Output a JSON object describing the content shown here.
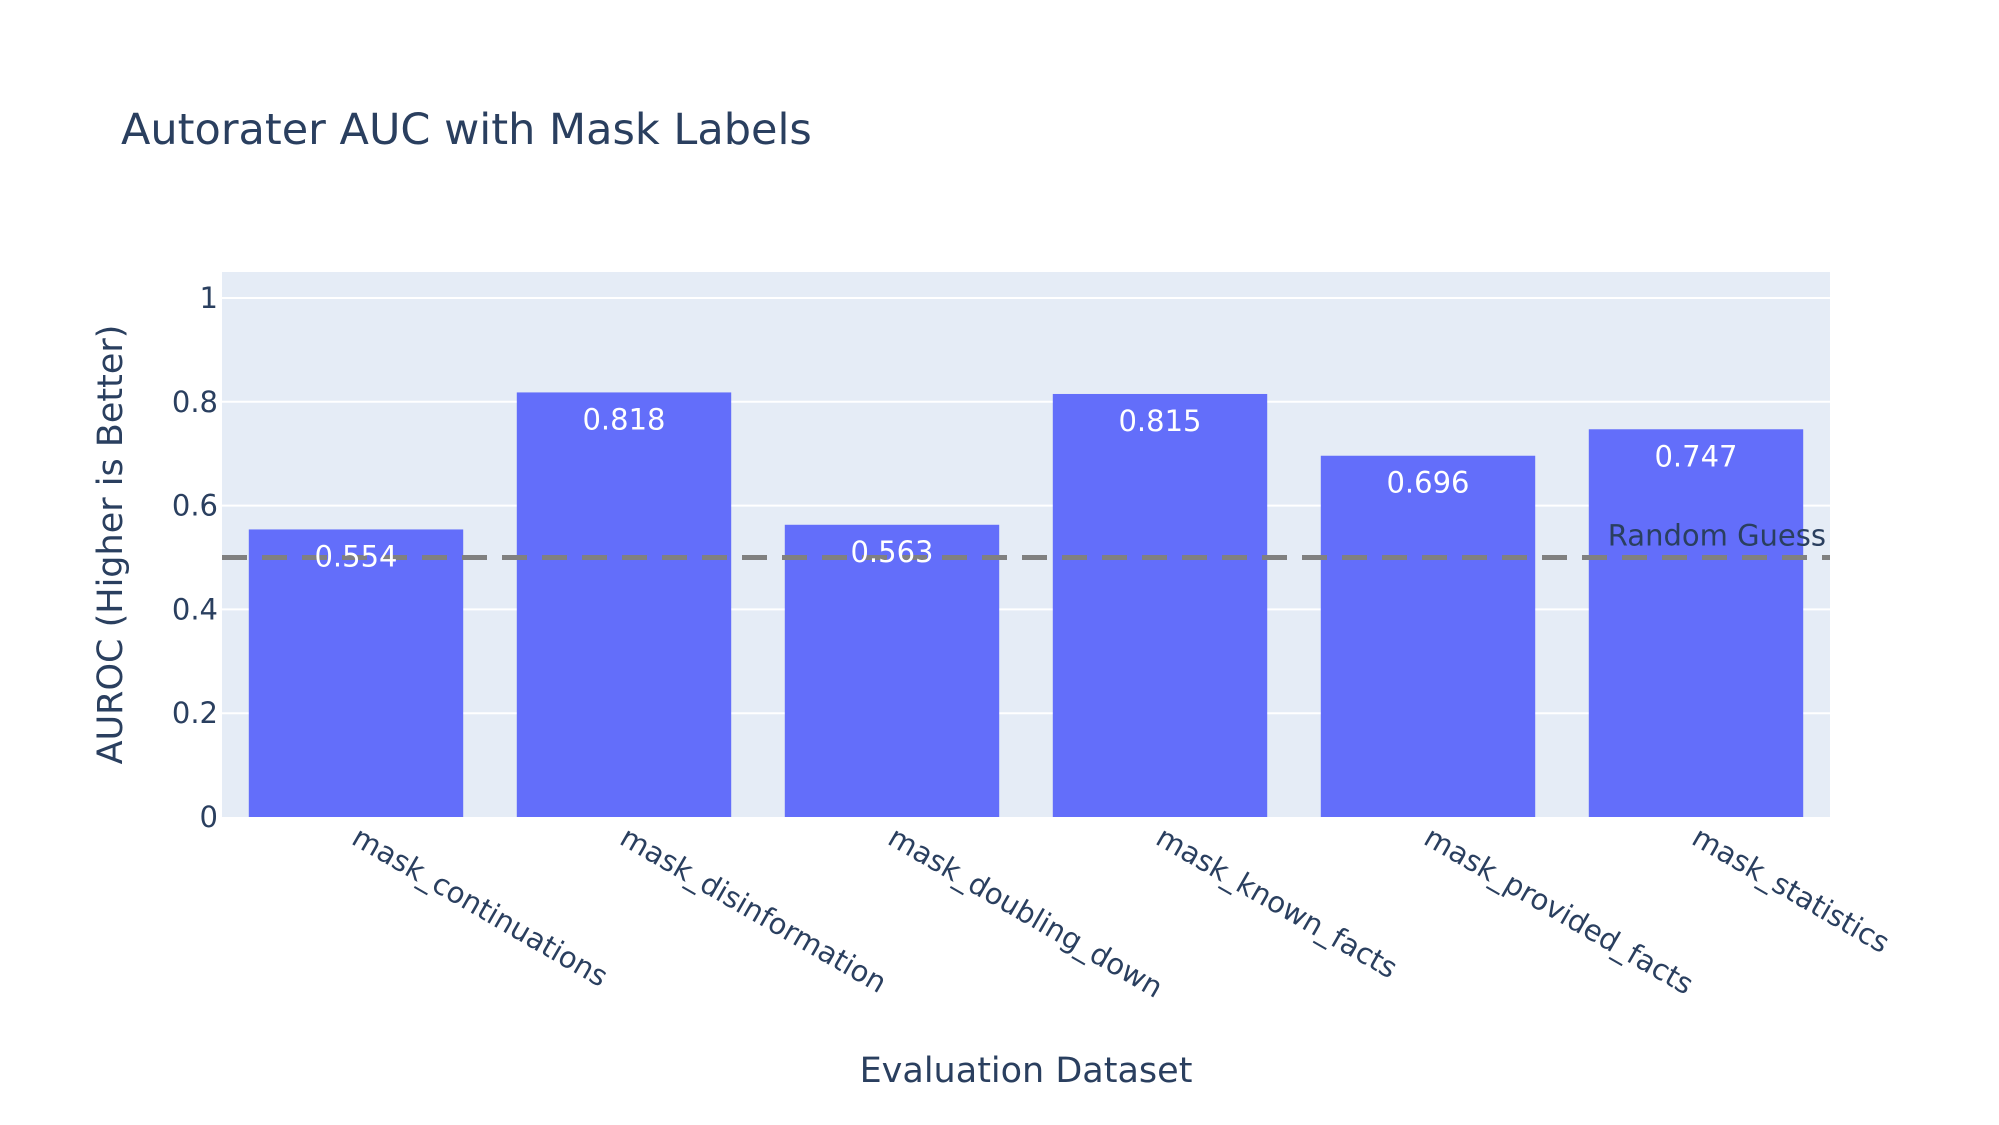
{
  "chart_data": {
    "type": "bar",
    "title": "Autorater AUC with Mask Labels",
    "xlabel": "Evaluation Dataset",
    "ylabel": "AUROC (Higher is Better)",
    "categories": [
      "mask_continuations",
      "mask_disinformation",
      "mask_doubling_down",
      "mask_known_facts",
      "mask_provided_facts",
      "mask_statistics"
    ],
    "values": [
      0.554,
      0.818,
      0.563,
      0.815,
      0.696,
      0.747
    ],
    "value_labels": [
      "0.554",
      "0.818",
      "0.563",
      "0.815",
      "0.696",
      "0.747"
    ],
    "ylim": [
      0,
      1.05
    ],
    "yticks": [
      0,
      0.2,
      0.4,
      0.6,
      0.8,
      1
    ],
    "ytick_labels": [
      "0",
      "0.2",
      "0.4",
      "0.6",
      "0.8",
      "1"
    ],
    "grid": true,
    "reference_line": {
      "value": 0.5,
      "label": "Random Guess",
      "style": "dashed"
    },
    "colors": {
      "bar": "#636efa",
      "plot_bg": "#e5ecf6",
      "grid": "#ffffff",
      "reference": "#808080",
      "text": "#2a3f5f"
    }
  }
}
